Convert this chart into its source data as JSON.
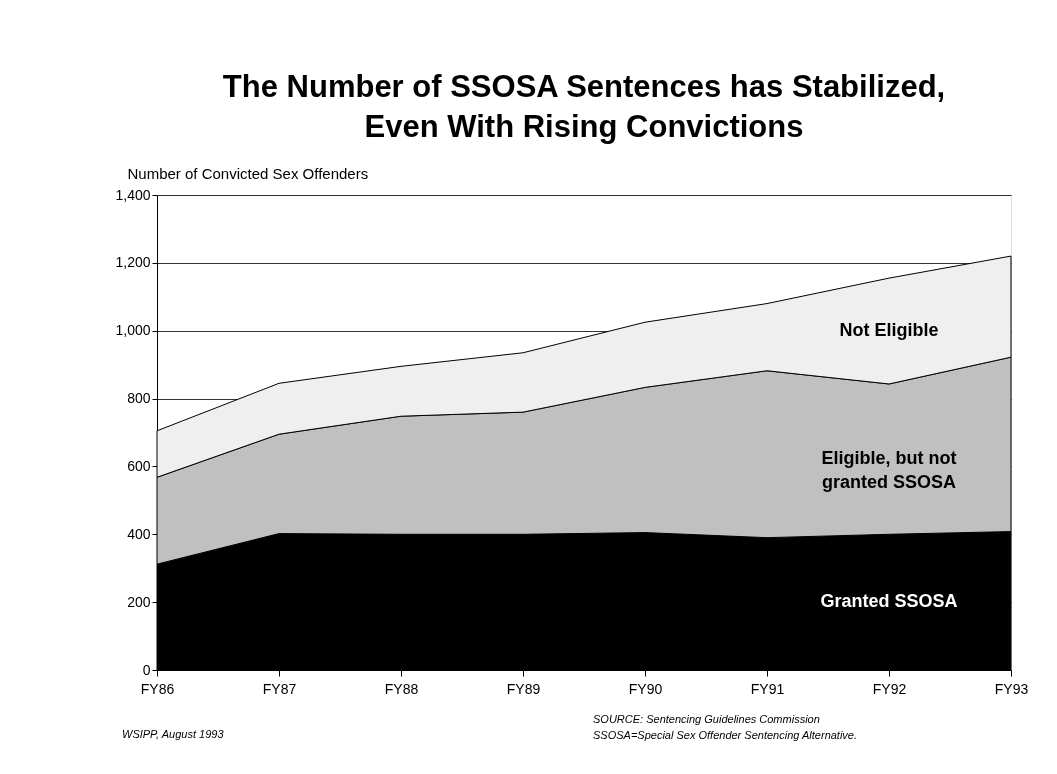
{
  "chart_data": {
    "type": "area",
    "stacked": true,
    "title": [
      "The Number of SSOSA Sentences has Stabilized,",
      "Even With Rising Convictions"
    ],
    "ylabel": "Number of Convicted Sex Offenders",
    "categories": [
      "FY86",
      "FY87",
      "FY88",
      "FY89",
      "FY90",
      "FY91",
      "FY92",
      "FY93"
    ],
    "series": [
      {
        "name": "Granted SSOSA",
        "color": "#000000",
        "values": [
          312,
          402,
          400,
          400,
          405,
          390,
          400,
          408
        ]
      },
      {
        "name": "Eligible, but not granted SSOSA",
        "color": "#c0c0c0",
        "values": [
          256,
          293,
          348,
          360,
          428,
          492,
          443,
          514
        ]
      },
      {
        "name": "Not Eligible",
        "color": "#efefef",
        "values": [
          137,
          150,
          147,
          175,
          192,
          198,
          312,
          298
        ]
      }
    ],
    "ylim": [
      0,
      1400
    ],
    "yticks": [
      0,
      200,
      400,
      600,
      800,
      {
        "value": 1000,
        "label": "1,000"
      },
      {
        "value": 1200,
        "label": "1,200"
      },
      {
        "value": 1400,
        "label": "1,400"
      }
    ],
    "grid": "y",
    "annotations": [
      "WSIPP, August 1993",
      "SOURCE:  Sentencing Guidelines Commission",
      "SSOSA=Special Sex Offender Sentencing Alternative."
    ]
  }
}
